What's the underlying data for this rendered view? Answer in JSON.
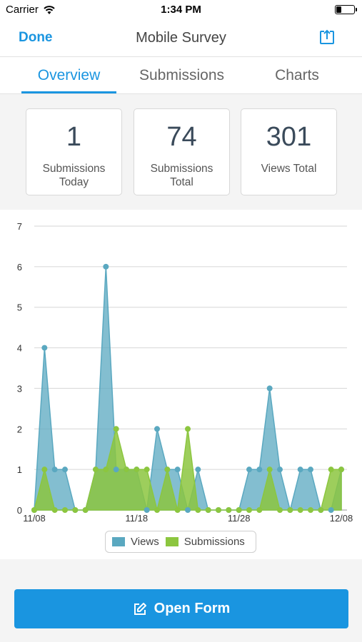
{
  "status_bar": {
    "carrier": "Carrier",
    "time": "1:34 PM"
  },
  "nav": {
    "done_label": "Done",
    "title": "Mobile Survey",
    "share_icon": "share-icon"
  },
  "tabs": [
    {
      "label": "Overview",
      "active": true
    },
    {
      "label": "Submissions",
      "active": false
    },
    {
      "label": "Charts",
      "active": false
    }
  ],
  "stats": [
    {
      "value": "1",
      "label": "Submissions Today"
    },
    {
      "value": "74",
      "label": "Submissions Total"
    },
    {
      "value": "301",
      "label": "Views Total"
    }
  ],
  "chart_data": {
    "type": "area",
    "title": "",
    "xlabel": "",
    "ylabel": "",
    "ylim": [
      0,
      7
    ],
    "yticks": [
      "0",
      "1",
      "2",
      "3",
      "4",
      "5",
      "6",
      "7"
    ],
    "xtick_labels": [
      "11/08",
      "11/18",
      "11/28",
      "12/08"
    ],
    "x": [
      "11/08",
      "11/09",
      "11/10",
      "11/11",
      "11/12",
      "11/13",
      "11/14",
      "11/15",
      "11/16",
      "11/17",
      "11/18",
      "11/19",
      "11/20",
      "11/21",
      "11/22",
      "11/23",
      "11/24",
      "11/25",
      "11/26",
      "11/27",
      "11/28",
      "11/29",
      "11/30",
      "12/01",
      "12/02",
      "12/03",
      "12/04",
      "12/05",
      "12/06",
      "12/07",
      "12/08"
    ],
    "grid": true,
    "legend_position": "bottom",
    "series": [
      {
        "name": "Views",
        "color": "#5aa8c0",
        "values": [
          0,
          4,
          1,
          1,
          0,
          0,
          1,
          6,
          1,
          1,
          1,
          0,
          2,
          1,
          1,
          0,
          1,
          0,
          0,
          0,
          0,
          1,
          1,
          3,
          1,
          0,
          1,
          1,
          0,
          0,
          1
        ]
      },
      {
        "name": "Submissions",
        "color": "#8cc63f",
        "values": [
          0,
          1,
          0,
          0,
          0,
          0,
          1,
          1,
          2,
          1,
          1,
          1,
          0,
          1,
          0,
          2,
          0,
          0,
          0,
          0,
          0,
          0,
          0,
          1,
          0,
          0,
          0,
          0,
          0,
          1,
          1
        ]
      }
    ]
  },
  "legend": {
    "views": "Views",
    "submissions": "Submissions"
  },
  "open_form": {
    "label": "Open Form",
    "icon": "edit-icon"
  }
}
